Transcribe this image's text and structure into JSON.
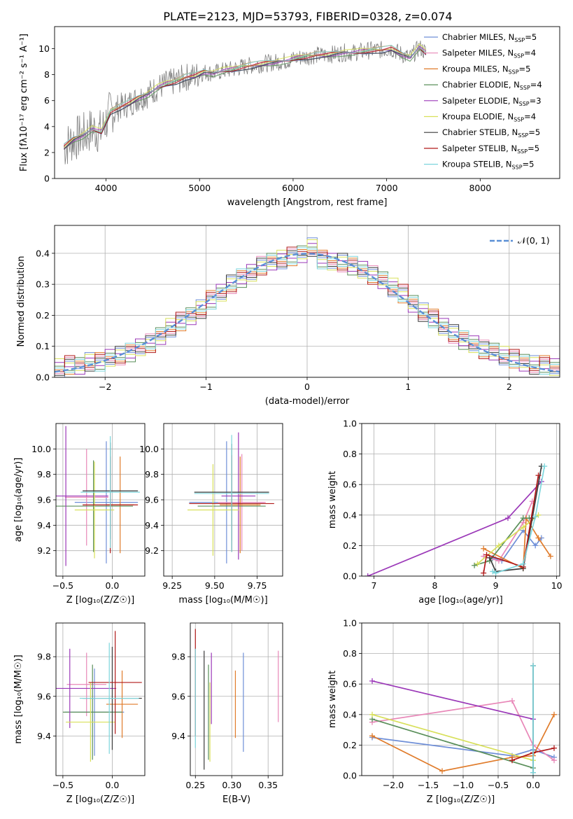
{
  "figure": {
    "title": "PLATE=2123, MJD=53793, FIBERID=0328, z=0.074"
  },
  "series_colors": [
    "#6f8fd8",
    "#e887b8",
    "#e07b2a",
    "#5a8f5a",
    "#9b38b8",
    "#d8e05a",
    "#3a3a3a",
    "#b01818",
    "#7dd6dc"
  ],
  "chart_data": [
    {
      "id": "spectrum",
      "type": "line",
      "xlabel": "wavelength [Angstrom, rest frame]",
      "ylabel": "Flux [fλ10⁻¹⁷ erg cm⁻² s⁻¹ A⁻¹]",
      "xlim": [
        3450,
        8850
      ],
      "ylim": [
        0,
        11.7
      ],
      "xticks": [
        4000,
        5000,
        6000,
        7000,
        8000
      ],
      "yticks": [
        0,
        2,
        4,
        6,
        8,
        10
      ],
      "data_color": "#808080",
      "data_x": [
        3550,
        3650,
        3750,
        3850,
        3950,
        4050,
        4150,
        4250,
        4350,
        4450,
        4550,
        4650,
        4750,
        4850,
        4950,
        5050,
        5150,
        5250,
        5350,
        5450,
        5550,
        5650,
        5750,
        5850,
        5950,
        6050,
        6150,
        6250,
        6350,
        6450,
        6550,
        6650,
        6750,
        6850,
        6950,
        7050,
        7150,
        7250,
        7350,
        7420
      ],
      "data_y": [
        2.4,
        3.0,
        3.3,
        3.8,
        3.6,
        5.2,
        5.5,
        5.8,
        6.2,
        6.5,
        7.0,
        7.3,
        7.5,
        7.8,
        7.9,
        8.2,
        8.1,
        8.3,
        8.4,
        8.6,
        8.7,
        8.8,
        8.9,
        9.0,
        9.1,
        9.3,
        9.4,
        9.5,
        9.5,
        9.6,
        9.7,
        9.7,
        9.8,
        9.9,
        9.9,
        10.0,
        9.6,
        9.3,
        10.1,
        9.7
      ],
      "legend_position": "upper right",
      "legend": [
        {
          "name": "Chabrier MILES, N",
          "sub": "SSP",
          "suffix": "=5"
        },
        {
          "name": "Salpeter MILES, N",
          "sub": "SSP",
          "suffix": "=4"
        },
        {
          "name": "Kroupa MILES, N",
          "sub": "SSP",
          "suffix": "=5"
        },
        {
          "name": "Chabrier ELODIE, N",
          "sub": "SSP",
          "suffix": "=4"
        },
        {
          "name": "Salpeter ELODIE, N",
          "sub": "SSP",
          "suffix": "=3"
        },
        {
          "name": "Kroupa ELODIE, N",
          "sub": "SSP",
          "suffix": "=4"
        },
        {
          "name": "Chabrier STELIB, N",
          "sub": "SSP",
          "suffix": "=5"
        },
        {
          "name": "Salpeter STELIB, N",
          "sub": "SSP",
          "suffix": "=5"
        },
        {
          "name": "Kroupa STELIB, N",
          "sub": "SSP",
          "suffix": "=5"
        }
      ]
    },
    {
      "id": "residuals",
      "type": "histogram",
      "xlabel": "(data-model)/error",
      "ylabel": "Normed distribution",
      "xlim": [
        -2.5,
        2.5
      ],
      "ylim": [
        0,
        0.49
      ],
      "xticks": [
        -2,
        -1,
        0,
        1,
        2
      ],
      "yticks": [
        0.0,
        0.1,
        0.2,
        0.3,
        0.4
      ],
      "grid": true,
      "legend_label": "𝒩(0, 1)",
      "legend_position": "upper right",
      "bin_edges": [
        -2.5,
        -2.4,
        -2.3,
        -2.2,
        -2.1,
        -2.0,
        -1.9,
        -1.8,
        -1.7,
        -1.6,
        -1.5,
        -1.4,
        -1.3,
        -1.2,
        -1.1,
        -1.0,
        -0.9,
        -0.8,
        -0.7,
        -0.6,
        -0.5,
        -0.4,
        -0.3,
        -0.2,
        -0.1,
        0.0,
        0.1,
        0.2,
        0.3,
        0.4,
        0.5,
        0.6,
        0.7,
        0.8,
        0.9,
        1.0,
        1.1,
        1.2,
        1.3,
        1.4,
        1.5,
        1.6,
        1.7,
        1.8,
        1.9,
        2.0,
        2.1,
        2.2,
        2.3,
        2.4,
        2.5
      ],
      "hist_values": [
        0.03,
        0.04,
        0.04,
        0.05,
        0.05,
        0.06,
        0.07,
        0.08,
        0.1,
        0.11,
        0.13,
        0.16,
        0.18,
        0.2,
        0.22,
        0.25,
        0.27,
        0.3,
        0.32,
        0.34,
        0.36,
        0.37,
        0.38,
        0.39,
        0.4,
        0.42,
        0.38,
        0.37,
        0.37,
        0.36,
        0.35,
        0.33,
        0.31,
        0.29,
        0.27,
        0.24,
        0.21,
        0.19,
        0.16,
        0.14,
        0.12,
        0.11,
        0.09,
        0.08,
        0.07,
        0.06,
        0.05,
        0.04,
        0.04,
        0.03
      ]
    },
    {
      "id": "age-vs-Z",
      "type": "errorbar",
      "xlabel": "Z [log₁₀(Z/Z☉)]",
      "ylabel": "age  [log₁₀(age/yr)]",
      "xlim": [
        -0.57,
        0.33
      ],
      "ylim": [
        9.0,
        10.2
      ],
      "xticks": [
        -0.5,
        0.0
      ],
      "xticklabels": [
        "−0.5",
        "0.0"
      ],
      "yticks": [
        9.2,
        9.4,
        9.6,
        9.8,
        10.0
      ],
      "grid": true,
      "points": [
        {
          "x": -0.06,
          "y": 9.58,
          "xerr": 0.32,
          "yerr": 0.48
        },
        {
          "x": -0.26,
          "y": 9.62,
          "xerr": 0.22,
          "yerr": 0.38
        },
        {
          "x": 0.08,
          "y": 9.56,
          "xerr": 0.14,
          "yerr": 0.38
        },
        {
          "x": -0.19,
          "y": 9.55,
          "xerr": 0.4,
          "yerr": 0.36
        },
        {
          "x": -0.47,
          "y": 9.63,
          "xerr": 0.43,
          "yerr": 0.55
        },
        {
          "x": -0.18,
          "y": 9.52,
          "xerr": 0.2,
          "yerr": 0.38
        },
        {
          "x": -0.02,
          "y": 9.67,
          "xerr": 0.28,
          "yerr": 0.38
        },
        {
          "x": -0.02,
          "y": 9.56,
          "xerr": 0.28,
          "yerr": 0.38
        },
        {
          "x": -0.02,
          "y": 9.66,
          "xerr": 0.3,
          "yerr": 0.44
        }
      ]
    },
    {
      "id": "age-vs-mass",
      "type": "errorbar",
      "xlabel": "mass [log₁₀(M/M☉)]",
      "ylabel": "",
      "xlim": [
        9.2,
        9.9
      ],
      "ylim": [
        9.0,
        10.2
      ],
      "xticks": [
        9.25,
        9.5,
        9.75
      ],
      "xticklabels": [
        "9.25",
        "9.50",
        "9.75"
      ],
      "yticks": [
        9.2,
        9.4,
        9.6,
        9.8,
        10.0
      ],
      "grid": true,
      "points": [
        {
          "x": 9.57,
          "y": 9.58,
          "xerr": 0.22,
          "yerr": 0.48
        },
        {
          "x": 9.66,
          "y": 9.58,
          "xerr": 0.14,
          "yerr": 0.38
        },
        {
          "x": 9.65,
          "y": 9.56,
          "xerr": 0.12,
          "yerr": 0.38
        },
        {
          "x": 9.6,
          "y": 9.55,
          "xerr": 0.2,
          "yerr": 0.36
        },
        {
          "x": 9.64,
          "y": 9.63,
          "xerr": 0.1,
          "yerr": 0.5
        },
        {
          "x": 9.49,
          "y": 9.52,
          "xerr": 0.15,
          "yerr": 0.36
        },
        {
          "x": 9.6,
          "y": 9.66,
          "xerr": 0.22,
          "yerr": 0.38
        },
        {
          "x": 9.6,
          "y": 9.57,
          "xerr": 0.25,
          "yerr": 0.38
        },
        {
          "x": 9.6,
          "y": 9.65,
          "xerr": 0.22,
          "yerr": 0.46
        }
      ]
    },
    {
      "id": "weight-vs-age",
      "type": "line",
      "xlabel": "age  [log₁₀(age/yr)]",
      "ylabel": "mass weight",
      "xlim": [
        6.8,
        10.05
      ],
      "ylim": [
        0,
        1
      ],
      "xticks": [
        7,
        8,
        9,
        10
      ],
      "yticks": [
        0.0,
        0.2,
        0.4,
        0.6,
        0.8,
        1.0
      ],
      "grid": true,
      "series": [
        {
          "x": [
            8.95,
            9.1,
            9.45,
            9.65,
            9.75
          ],
          "y": [
            0.12,
            0.1,
            0.3,
            0.2,
            0.25
          ]
        },
        {
          "x": [
            8.8,
            9.05,
            9.45,
            9.6
          ],
          "y": [
            0.13,
            0.1,
            0.35,
            0.49
          ]
        },
        {
          "x": [
            8.8,
            9.45,
            9.5,
            9.7,
            9.9
          ],
          "y": [
            0.18,
            0.05,
            0.38,
            0.25,
            0.13
          ]
        },
        {
          "x": [
            8.65,
            8.9,
            9.45,
            9.55
          ],
          "y": [
            0.07,
            0.1,
            0.38,
            0.38
          ]
        },
        {
          "x": [
            6.9,
            9.2,
            9.75
          ],
          "y": [
            0.0,
            0.38,
            0.62
          ]
        },
        {
          "x": [
            8.7,
            9.05,
            9.45,
            9.7
          ],
          "y": [
            0.08,
            0.2,
            0.32,
            0.4
          ]
        },
        {
          "x": [
            8.9,
            9.0,
            9.45,
            9.6,
            9.75
          ],
          "y": [
            0.12,
            0.03,
            0.05,
            0.38,
            0.72
          ]
        },
        {
          "x": [
            8.8,
            8.85,
            9.45,
            9.7
          ],
          "y": [
            0.02,
            0.14,
            0.06,
            0.66
          ]
        },
        {
          "x": [
            8.95,
            9.0,
            9.45,
            9.65,
            9.8
          ],
          "y": [
            0.03,
            0.02,
            0.08,
            0.39,
            0.72
          ]
        }
      ]
    },
    {
      "id": "mass-vs-Z",
      "type": "errorbar",
      "xlabel": "Z [log₁₀(Z/Z☉)]",
      "ylabel": "mass [log₁₀(M/M☉)]",
      "xlim": [
        -0.57,
        0.33
      ],
      "ylim": [
        9.2,
        9.97
      ],
      "xticks": [
        -0.5,
        0.0
      ],
      "xticklabels": [
        "−0.5",
        "0.0"
      ],
      "yticks": [
        9.4,
        9.6,
        9.8
      ],
      "grid": true,
      "points": [
        {
          "x": -0.18,
          "y": 9.52,
          "xerr": 0.3,
          "yerr": 0.22
        },
        {
          "x": -0.26,
          "y": 9.66,
          "xerr": 0.2,
          "yerr": 0.16
        },
        {
          "x": 0.1,
          "y": 9.56,
          "xerr": 0.16,
          "yerr": 0.17
        },
        {
          "x": -0.2,
          "y": 9.52,
          "xerr": 0.3,
          "yerr": 0.24
        },
        {
          "x": -0.43,
          "y": 9.64,
          "xerr": 0.47,
          "yerr": 0.2
        },
        {
          "x": -0.22,
          "y": 9.47,
          "xerr": 0.25,
          "yerr": 0.2
        },
        {
          "x": 0.0,
          "y": 9.59,
          "xerr": 0.3,
          "yerr": 0.26
        },
        {
          "x": 0.03,
          "y": 9.67,
          "xerr": 0.27,
          "yerr": 0.26
        },
        {
          "x": -0.03,
          "y": 9.59,
          "xerr": 0.3,
          "yerr": 0.28
        }
      ]
    },
    {
      "id": "mass-vs-ebv",
      "type": "errorbar",
      "xlabel": "E(B-V)",
      "ylabel": "",
      "xlim": [
        0.243,
        0.37
      ],
      "ylim": [
        9.2,
        9.97
      ],
      "xticks": [
        0.25,
        0.3,
        0.35
      ],
      "xticklabels": [
        "0.25",
        "0.30",
        "0.35"
      ],
      "yticks": [
        9.4,
        9.6,
        9.8
      ],
      "grid": true,
      "points": [
        {
          "x": 0.316,
          "y": 9.57,
          "xerr": 0,
          "yerr": 0.25
        },
        {
          "x": 0.364,
          "y": 9.65,
          "xerr": 0,
          "yerr": 0.18
        },
        {
          "x": 0.305,
          "y": 9.56,
          "xerr": 0,
          "yerr": 0.17
        },
        {
          "x": 0.268,
          "y": 9.52,
          "xerr": 0,
          "yerr": 0.24
        },
        {
          "x": 0.272,
          "y": 9.64,
          "xerr": 0,
          "yerr": 0.18
        },
        {
          "x": 0.27,
          "y": 9.47,
          "xerr": 0,
          "yerr": 0.2
        },
        {
          "x": 0.262,
          "y": 9.53,
          "xerr": 0,
          "yerr": 0.3
        },
        {
          "x": 0.25,
          "y": 9.67,
          "xerr": 0,
          "yerr": 0.27
        },
        {
          "x": 0.25,
          "y": 9.59,
          "xerr": 0,
          "yerr": 0.25
        }
      ]
    },
    {
      "id": "weight-vs-Z",
      "type": "line",
      "xlabel": "Z [log₁₀(Z/Z☉)]",
      "ylabel": "mass weight",
      "xlim": [
        -2.45,
        0.38
      ],
      "ylim": [
        0,
        1
      ],
      "xticks": [
        -2.0,
        -1.5,
        -1.0,
        -0.5,
        0.0
      ],
      "xticklabels": [
        "−2.0",
        "−1.5",
        "−1.0",
        "−0.5",
        "0.0"
      ],
      "yticks": [
        0.0,
        0.2,
        0.4,
        0.6,
        0.8,
        1.0
      ],
      "grid": true,
      "series": [
        {
          "x": [
            -2.3,
            -0.3,
            0.0,
            0.3
          ],
          "y": [
            0.25,
            0.13,
            0.17,
            0.12
          ]
        },
        {
          "x": [
            -2.3,
            -0.3,
            0.0,
            0.3
          ],
          "y": [
            0.35,
            0.49,
            0.2,
            0.1
          ]
        },
        {
          "x": [
            -2.3,
            -1.3,
            -0.3,
            0.0,
            0.3
          ],
          "y": [
            0.26,
            0.03,
            0.12,
            0.13,
            0.4
          ]
        },
        {
          "x": [
            -2.3,
            0.0
          ],
          "y": [
            0.37,
            0.05
          ]
        },
        {
          "x": [
            -2.3,
            0.0
          ],
          "y": [
            0.62,
            0.37
          ]
        },
        {
          "x": [
            -2.3,
            0.0
          ],
          "y": [
            0.4,
            0.1
          ]
        },
        {
          "x": [
            0.0,
            0.0
          ],
          "y": [
            0.72,
            0.02
          ]
        },
        {
          "x": [
            -0.3,
            0.0,
            0.3
          ],
          "y": [
            0.1,
            0.15,
            0.18
          ]
        },
        {
          "x": [
            0.0,
            0.0
          ],
          "y": [
            0.72,
            0.02
          ]
        }
      ]
    }
  ]
}
